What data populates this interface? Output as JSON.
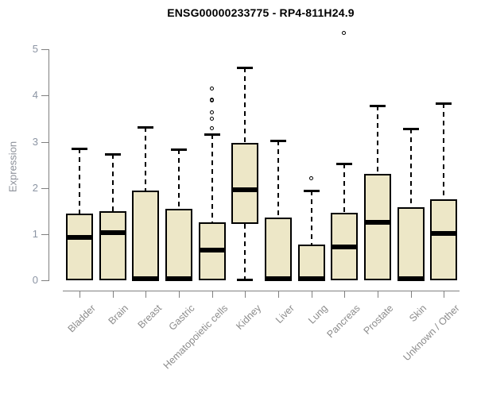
{
  "chart_data": {
    "type": "box",
    "title": "ENSG00000233775 - RP4-811H24.9",
    "ylabel": "Expression",
    "xlabel": "",
    "ylim": [
      0,
      5.5
    ],
    "yticks": [
      0,
      1,
      2,
      3,
      4,
      5
    ],
    "grid": false,
    "legend": false,
    "categories": [
      "Bladder",
      "Brain",
      "Breast",
      "Gastric",
      "Hematopoietic cells",
      "Kidney",
      "Liver",
      "Lung",
      "Pancreas",
      "Prostate",
      "Skin",
      "Unknown / Other"
    ],
    "boxes": [
      {
        "category": "Bladder",
        "whisker_low": 0,
        "q1": 0,
        "median": 0.92,
        "q3": 1.45,
        "whisker_high": 2.86,
        "outliers": []
      },
      {
        "category": "Brain",
        "whisker_low": 0,
        "q1": 0,
        "median": 1.04,
        "q3": 1.5,
        "whisker_high": 2.73,
        "outliers": []
      },
      {
        "category": "Breast",
        "whisker_low": 0,
        "q1": 0,
        "median": 0.03,
        "q3": 1.94,
        "whisker_high": 3.31,
        "outliers": []
      },
      {
        "category": "Gastric",
        "whisker_low": 0,
        "q1": 0,
        "median": 0.03,
        "q3": 1.54,
        "whisker_high": 2.83,
        "outliers": []
      },
      {
        "category": "Hematopoietic cells",
        "whisker_low": 0,
        "q1": 0,
        "median": 0.66,
        "q3": 1.25,
        "whisker_high": 3.17,
        "outliers": [
          3.28,
          3.49,
          3.62,
          3.88,
          3.91,
          4.14
        ]
      },
      {
        "category": "Kidney",
        "whisker_low": 0.02,
        "q1": 1.22,
        "median": 1.96,
        "q3": 2.97,
        "whisker_high": 4.61,
        "outliers": []
      },
      {
        "category": "Liver",
        "whisker_low": 0,
        "q1": 0,
        "median": 0.03,
        "q3": 1.35,
        "whisker_high": 3.03,
        "outliers": []
      },
      {
        "category": "Lung",
        "whisker_low": 0,
        "q1": 0,
        "median": 0.03,
        "q3": 0.77,
        "whisker_high": 1.94,
        "outliers": [
          2.2
        ]
      },
      {
        "category": "Pancreas",
        "whisker_low": 0,
        "q1": 0,
        "median": 0.73,
        "q3": 1.47,
        "whisker_high": 2.53,
        "outliers": [
          5.35
        ]
      },
      {
        "category": "Prostate",
        "whisker_low": 0,
        "q1": 0,
        "median": 1.25,
        "q3": 2.3,
        "whisker_high": 3.79,
        "outliers": []
      },
      {
        "category": "Skin",
        "whisker_low": 0,
        "q1": 0,
        "median": 0.03,
        "q3": 1.59,
        "whisker_high": 3.28,
        "outliers": []
      },
      {
        "category": "Unknown / Other",
        "whisker_low": 0,
        "q1": 0,
        "median": 1.01,
        "q3": 1.76,
        "whisker_high": 3.83,
        "outliers": []
      }
    ],
    "colors": {
      "box_fill": "#EDE7C7",
      "box_stroke": "#000000",
      "median": "#000000",
      "axis_line": "#808080",
      "axis_number_text": "#8B94A3",
      "category_text": "#8C8C8C",
      "title_text": "#000000",
      "background": "#FFFFFF"
    }
  }
}
